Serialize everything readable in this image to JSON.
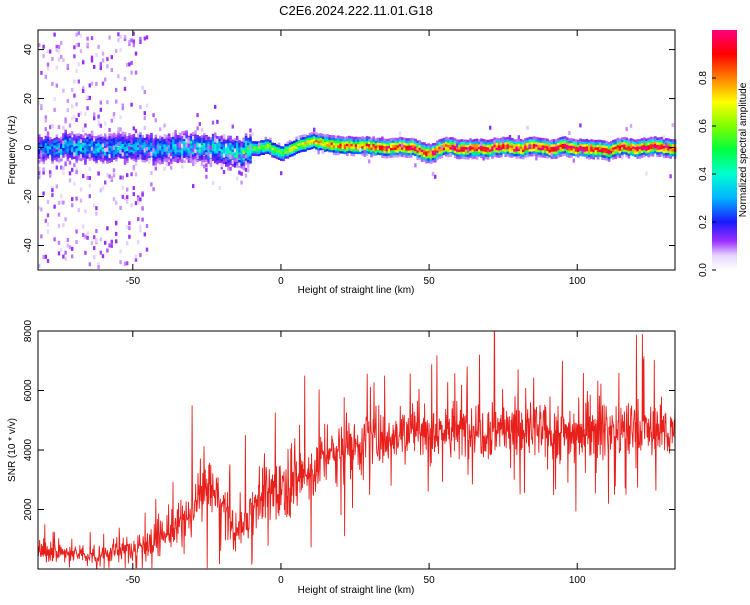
{
  "title": "C2E6.2024.222.11.01.G18",
  "chart_data": [
    {
      "type": "heatmap",
      "title": "C2E6.2024.222.11.01.G18",
      "xlabel": "Height of straight line (km)",
      "ylabel": "Frequency (Hz)",
      "xlim": [
        -82,
        133
      ],
      "ylim": [
        -50,
        48
      ],
      "x_ticks": [
        -50,
        0,
        50,
        100
      ],
      "y_ticks": [
        -40,
        -20,
        0,
        20,
        40
      ],
      "grid": false,
      "ridge": {
        "x": [
          -82,
          -70,
          -60,
          -50,
          -40,
          -30,
          -20,
          -15,
          -10,
          -5,
          0,
          5,
          10,
          15,
          20,
          25,
          30,
          35,
          40,
          45,
          50,
          55,
          60,
          65,
          70,
          75,
          80,
          85,
          90,
          95,
          100,
          105,
          110,
          115,
          120,
          125,
          133
        ],
        "freq": [
          0,
          1,
          0,
          1,
          0,
          1,
          -1,
          -2,
          0,
          1,
          -2,
          1,
          3,
          2,
          1,
          1,
          1,
          0,
          1,
          0,
          -2,
          1,
          0,
          0,
          0,
          1,
          0,
          1,
          0,
          1,
          0,
          0,
          -1,
          1,
          0,
          1,
          0
        ],
        "amplitude": [
          0.25,
          0.3,
          0.3,
          0.3,
          0.3,
          0.35,
          0.35,
          0.4,
          0.5,
          0.6,
          0.55,
          0.65,
          0.7,
          0.75,
          0.8,
          0.85,
          0.85,
          0.9,
          0.9,
          0.95,
          0.95,
          0.95,
          0.95,
          0.95,
          0.95,
          0.95,
          0.95,
          0.95,
          0.95,
          0.95,
          0.95,
          0.95,
          0.9,
          0.95,
          0.95,
          0.95,
          0.95
        ]
      },
      "colorbar": {
        "label": "Normalized spectral amplitude",
        "range": [
          0,
          1
        ],
        "ticks": [
          "0.0",
          "0.2",
          "0.4",
          "0.6",
          "0.8"
        ],
        "colormap": "rainbow (white-violet-blue-cyan-green-yellow-red-magenta)"
      }
    },
    {
      "type": "line",
      "xlabel": "Height of straight line (km)",
      "ylabel": "SNR (10 * v/v)",
      "xlim": [
        -82,
        133
      ],
      "ylim": [
        0,
        8000
      ],
      "x_ticks": [
        -50,
        0,
        50,
        100
      ],
      "y_ticks": [
        2000,
        4000,
        6000,
        8000
      ],
      "grid": false,
      "series": [
        {
          "color": "#e8201c",
          "x": [
            -82,
            -75,
            -70,
            -65,
            -60,
            -55,
            -50,
            -45,
            -40,
            -35,
            -30,
            -27,
            -25,
            -22,
            -20,
            -17,
            -15,
            -12,
            -10,
            -5,
            0,
            5,
            10,
            15,
            20,
            25,
            30,
            35,
            40,
            45,
            50,
            55,
            60,
            65,
            70,
            75,
            80,
            85,
            90,
            95,
            100,
            105,
            110,
            115,
            120,
            125,
            130,
            133
          ],
          "y": [
            600,
            550,
            500,
            450,
            500,
            600,
            700,
            900,
            1100,
            1400,
            1800,
            2600,
            2900,
            2500,
            2100,
            1600,
            1200,
            1500,
            2200,
            2500,
            2800,
            3000,
            3200,
            3800,
            4000,
            4200,
            4400,
            4400,
            4600,
            4700,
            4600,
            4700,
            4600,
            4800,
            4700,
            4800,
            4600,
            4700,
            4500,
            4600,
            4600,
            4800,
            4700,
            4600,
            4700,
            4600,
            4700,
            4600
          ],
          "spread": [
            500,
            450,
            400,
            400,
            450,
            500,
            600,
            700,
            800,
            900,
            1000,
            1300,
            1400,
            1200,
            1100,
            900,
            800,
            1000,
            1300,
            1300,
            1400,
            1400,
            1400,
            1300,
            1300,
            1300,
            1300,
            1200,
            1200,
            1300,
            1300,
            1300,
            1300,
            1400,
            1500,
            1400,
            1400,
            1400,
            1300,
            1300,
            1400,
            1400,
            1300,
            1300,
            1400,
            1300,
            1300,
            1300
          ],
          "peak_values": [
            [
              72,
              8000
            ],
            [
              122,
              7900
            ],
            [
              -30,
              5500
            ],
            [
              8,
              6500
            ],
            [
              95,
              7000
            ],
            [
              35,
              6500
            ],
            [
              -12,
              4500
            ]
          ]
        }
      ]
    }
  ]
}
